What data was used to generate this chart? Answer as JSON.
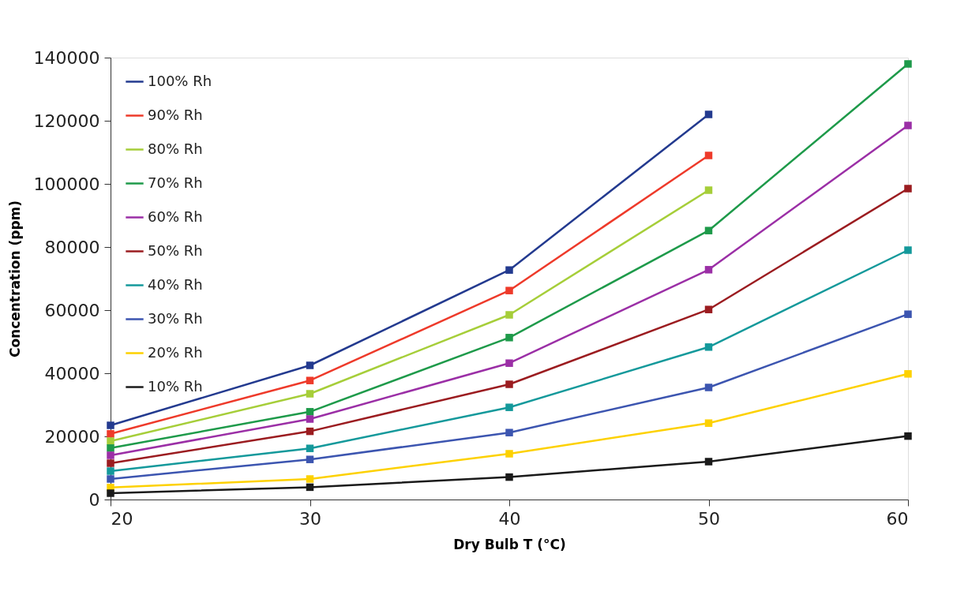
{
  "chart_data": {
    "type": "line",
    "xlabel": "Dry Bulb T (°C)",
    "ylabel": "Concentration (ppm)",
    "x": [
      20,
      30,
      40,
      50,
      60
    ],
    "xlim": [
      20,
      60
    ],
    "xticks": [
      20,
      30,
      40,
      50,
      60
    ],
    "ylim": [
      0,
      140000
    ],
    "yticks": [
      0,
      20000,
      40000,
      60000,
      80000,
      100000,
      120000,
      140000
    ],
    "grid": false,
    "legend": "top left",
    "marker": "square",
    "line_style": "solid",
    "series": [
      {
        "name": "100% Rh",
        "color": "#233a8f",
        "values": [
          23500,
          42500,
          72700,
          122000,
          null
        ]
      },
      {
        "name": "90% Rh",
        "color": "#ee3a2a",
        "values": [
          20800,
          37700,
          66200,
          109000,
          null
        ]
      },
      {
        "name": "80% Rh",
        "color": "#a6ce39",
        "values": [
          18500,
          33500,
          58500,
          98000,
          null
        ]
      },
      {
        "name": "70% Rh",
        "color": "#1e9a4a",
        "values": [
          16300,
          27800,
          51300,
          85200,
          138000
        ]
      },
      {
        "name": "60% Rh",
        "color": "#9b2fa6",
        "values": [
          14000,
          25500,
          43200,
          72800,
          118500
        ]
      },
      {
        "name": "50% Rh",
        "color": "#9b1c20",
        "values": [
          11500,
          21600,
          36500,
          60200,
          98500
        ]
      },
      {
        "name": "40% Rh",
        "color": "#14999b",
        "values": [
          9000,
          16200,
          29200,
          48300,
          79000
        ]
      },
      {
        "name": "30% Rh",
        "color": "#3c55b0",
        "values": [
          6500,
          12700,
          21200,
          35500,
          58700
        ]
      },
      {
        "name": "20% Rh",
        "color": "#fdd100",
        "values": [
          3800,
          6500,
          14500,
          24200,
          39800
        ]
      },
      {
        "name": "10% Rh",
        "color": "#1a1a1a",
        "values": [
          2000,
          3900,
          7100,
          12000,
          20100
        ]
      }
    ]
  }
}
